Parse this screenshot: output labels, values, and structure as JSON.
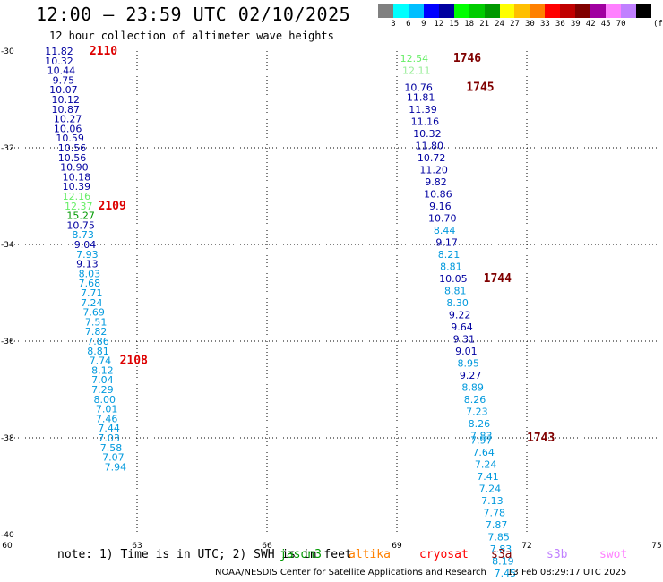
{
  "header": {
    "title": "12:00 — 23:59 UTC 02/10/2025",
    "subtitle": "12 hour collection of altimeter wave heights"
  },
  "legend": {
    "unit": "(ft)",
    "ticks": [
      "3",
      "6",
      "9",
      "12",
      "15",
      "18",
      "21",
      "24",
      "27",
      "30",
      "33",
      "36",
      "39",
      "42",
      "45",
      "70"
    ],
    "colors": [
      "#808080",
      "#00ffff",
      "#00bfff",
      "#0000ff",
      "#0000a0",
      "#00ff00",
      "#00cc00",
      "#009900",
      "#ffff00",
      "#ffbf00",
      "#ff8000",
      "#ff0000",
      "#c00000",
      "#800000",
      "#a000a0",
      "#ff80ff",
      "#c080ff",
      "#000000"
    ]
  },
  "note": {
    "text": "note: 1) Time is in UTC; 2) SWH is in feet",
    "satellites": [
      {
        "name": "jason3",
        "color": "#009900"
      },
      {
        "name": "altika",
        "color": "#ff8000"
      },
      {
        "name": "cryosat",
        "color": "#ff0000"
      },
      {
        "name": "s3a",
        "color": "#800000"
      },
      {
        "name": "s3b",
        "color": "#c080ff"
      },
      {
        "name": "swot",
        "color": "#ff80ff"
      }
    ]
  },
  "footer": {
    "org": "NOAA/NESDIS Center for Satellite Applications and Research",
    "timestamp": "13 Feb 08:29:17 UTC 2025"
  },
  "chart_data": {
    "type": "scatter",
    "xlim": [
      60,
      75
    ],
    "ylim": [
      -40,
      -30
    ],
    "x_ticks": [
      "60",
      "63",
      "66",
      "69",
      "72",
      "75"
    ],
    "y_ticks": [
      "-30",
      "-32",
      "-34",
      "-36",
      "-38",
      "-40"
    ],
    "grid": true,
    "tracks": [
      {
        "points": [
          {
            "x": 61.2,
            "y": -30.0,
            "v": "11.82",
            "c": "#0000a0"
          },
          {
            "x": 61.2,
            "y": -30.2,
            "v": "10.32",
            "c": "#0000a0"
          },
          {
            "x": 61.25,
            "y": -30.4,
            "v": "10.44",
            "c": "#0000a0"
          },
          {
            "x": 61.3,
            "y": -30.6,
            "v": "9.75",
            "c": "#0000a0"
          },
          {
            "x": 61.3,
            "y": -30.8,
            "v": "10.07",
            "c": "#0000a0"
          },
          {
            "x": 61.35,
            "y": -31.0,
            "v": "10.12",
            "c": "#0000a0"
          },
          {
            "x": 61.35,
            "y": -31.2,
            "v": "10.87",
            "c": "#0000a0"
          },
          {
            "x": 61.4,
            "y": -31.4,
            "v": "10.27",
            "c": "#0000a0"
          },
          {
            "x": 61.4,
            "y": -31.6,
            "v": "10.06",
            "c": "#0000a0"
          },
          {
            "x": 61.45,
            "y": -31.8,
            "v": "10.59",
            "c": "#0000a0"
          },
          {
            "x": 61.5,
            "y": -32.0,
            "v": "10.56",
            "c": "#0000a0"
          },
          {
            "x": 61.5,
            "y": -32.2,
            "v": "10.56",
            "c": "#0000a0"
          },
          {
            "x": 61.55,
            "y": -32.4,
            "v": "10.90",
            "c": "#0000a0"
          },
          {
            "x": 61.6,
            "y": -32.6,
            "v": "10.18",
            "c": "#0000a0"
          },
          {
            "x": 61.6,
            "y": -32.8,
            "v": "10.39",
            "c": "#0000a0"
          },
          {
            "x": 61.6,
            "y": -33.0,
            "v": "12.16",
            "c": "#66ee66"
          },
          {
            "x": 61.65,
            "y": -33.2,
            "v": "12.37",
            "c": "#66ee66"
          },
          {
            "x": 61.7,
            "y": -33.4,
            "v": "15.27",
            "c": "#009900"
          },
          {
            "x": 61.7,
            "y": -33.6,
            "v": "10.75",
            "c": "#0000a0"
          },
          {
            "x": 61.75,
            "y": -33.8,
            "v": "8.73",
            "c": "#0099dd"
          },
          {
            "x": 61.8,
            "y": -34.0,
            "v": "9.04",
            "c": "#0000a0"
          },
          {
            "x": 61.85,
            "y": -34.2,
            "v": "7.93",
            "c": "#0099dd"
          },
          {
            "x": 61.85,
            "y": -34.4,
            "v": "9.13",
            "c": "#0000a0"
          },
          {
            "x": 61.9,
            "y": -34.6,
            "v": "8.03",
            "c": "#0099dd"
          },
          {
            "x": 61.9,
            "y": -34.8,
            "v": "7.68",
            "c": "#0099dd"
          },
          {
            "x": 61.95,
            "y": -35.0,
            "v": "7.71",
            "c": "#0099dd"
          },
          {
            "x": 61.95,
            "y": -35.2,
            "v": "7.24",
            "c": "#0099dd"
          },
          {
            "x": 62.0,
            "y": -35.4,
            "v": "7.69",
            "c": "#0099dd"
          },
          {
            "x": 62.05,
            "y": -35.6,
            "v": "7.51",
            "c": "#0099dd"
          },
          {
            "x": 62.05,
            "y": -35.8,
            "v": "7.82",
            "c": "#0099dd"
          },
          {
            "x": 62.1,
            "y": -36.0,
            "v": "7.86",
            "c": "#0099dd"
          },
          {
            "x": 62.1,
            "y": -36.2,
            "v": "8.81",
            "c": "#0099dd"
          },
          {
            "x": 62.15,
            "y": -36.4,
            "v": "7.74",
            "c": "#0099dd"
          },
          {
            "x": 62.2,
            "y": -36.6,
            "v": "8.12",
            "c": "#0099dd"
          },
          {
            "x": 62.2,
            "y": -36.8,
            "v": "7.04",
            "c": "#0099dd"
          },
          {
            "x": 62.2,
            "y": -37.0,
            "v": "7.29",
            "c": "#0099dd"
          },
          {
            "x": 62.25,
            "y": -37.2,
            "v": "8.00",
            "c": "#0099dd"
          },
          {
            "x": 62.3,
            "y": -37.4,
            "v": "7.01",
            "c": "#0099dd"
          },
          {
            "x": 62.3,
            "y": -37.6,
            "v": "7.46",
            "c": "#0099dd"
          },
          {
            "x": 62.35,
            "y": -37.8,
            "v": "7.44",
            "c": "#0099dd"
          },
          {
            "x": 62.35,
            "y": -38.0,
            "v": "7.03",
            "c": "#0099dd"
          },
          {
            "x": 62.4,
            "y": -38.2,
            "v": "7.58",
            "c": "#0099dd"
          },
          {
            "x": 62.45,
            "y": -38.4,
            "v": "7.07",
            "c": "#0099dd"
          },
          {
            "x": 62.5,
            "y": -38.6,
            "v": "7.94",
            "c": "#0099dd"
          }
        ]
      },
      {
        "points": [
          {
            "x": 69.4,
            "y": -30.15,
            "v": "12.54",
            "c": "#66ee66"
          },
          {
            "x": 69.45,
            "y": -30.4,
            "v": "12.11",
            "c": "#99ee99"
          },
          {
            "x": 69.5,
            "y": -30.75,
            "v": "10.76",
            "c": "#0000a0"
          },
          {
            "x": 69.55,
            "y": -30.95,
            "v": "11.81",
            "c": "#0000a0"
          },
          {
            "x": 69.6,
            "y": -31.2,
            "v": "11.39",
            "c": "#0000a0"
          },
          {
            "x": 69.65,
            "y": -31.45,
            "v": "11.16",
            "c": "#0000a0"
          },
          {
            "x": 69.7,
            "y": -31.7,
            "v": "10.32",
            "c": "#0000a0"
          },
          {
            "x": 69.75,
            "y": -31.95,
            "v": "11.80",
            "c": "#0000a0"
          },
          {
            "x": 69.8,
            "y": -32.2,
            "v": "10.72",
            "c": "#0000a0"
          },
          {
            "x": 69.85,
            "y": -32.45,
            "v": "11.20",
            "c": "#0000a0"
          },
          {
            "x": 69.9,
            "y": -32.7,
            "v": "9.82",
            "c": "#0000a0"
          },
          {
            "x": 69.95,
            "y": -32.95,
            "v": "10.86",
            "c": "#0000a0"
          },
          {
            "x": 70.0,
            "y": -33.2,
            "v": "9.16",
            "c": "#0000a0"
          },
          {
            "x": 70.05,
            "y": -33.45,
            "v": "10.70",
            "c": "#0000a0"
          },
          {
            "x": 70.1,
            "y": -33.7,
            "v": "8.44",
            "c": "#0099dd"
          },
          {
            "x": 70.15,
            "y": -33.95,
            "v": "9.17",
            "c": "#0000a0"
          },
          {
            "x": 70.2,
            "y": -34.2,
            "v": "8.21",
            "c": "#0099dd"
          },
          {
            "x": 70.25,
            "y": -34.45,
            "v": "8.81",
            "c": "#0099dd"
          },
          {
            "x": 70.3,
            "y": -34.7,
            "v": "10.05",
            "c": "#0000a0"
          },
          {
            "x": 70.35,
            "y": -34.95,
            "v": "8.81",
            "c": "#0099dd"
          },
          {
            "x": 70.4,
            "y": -35.2,
            "v": "8.30",
            "c": "#0099dd"
          },
          {
            "x": 70.45,
            "y": -35.45,
            "v": "9.22",
            "c": "#0000a0"
          },
          {
            "x": 70.5,
            "y": -35.7,
            "v": "9.64",
            "c": "#0000a0"
          },
          {
            "x": 70.55,
            "y": -35.95,
            "v": "9.31",
            "c": "#0000a0"
          },
          {
            "x": 70.6,
            "y": -36.2,
            "v": "9.01",
            "c": "#0000a0"
          },
          {
            "x": 70.65,
            "y": -36.45,
            "v": "8.95",
            "c": "#0099dd"
          },
          {
            "x": 70.7,
            "y": -36.7,
            "v": "9.27",
            "c": "#0000a0"
          },
          {
            "x": 70.75,
            "y": -36.95,
            "v": "8.89",
            "c": "#0099dd"
          },
          {
            "x": 70.8,
            "y": -37.2,
            "v": "8.26",
            "c": "#0099dd"
          },
          {
            "x": 70.85,
            "y": -37.45,
            "v": "7.23",
            "c": "#0099dd"
          },
          {
            "x": 70.9,
            "y": -37.7,
            "v": "8.26",
            "c": "#0099dd"
          },
          {
            "x": 70.95,
            "y": -37.95,
            "v": "7.83",
            "c": "#0099dd"
          },
          {
            "x": 70.95,
            "y": -38.05,
            "v": "7.97",
            "c": "#0099dd"
          },
          {
            "x": 71.0,
            "y": -38.3,
            "v": "7.64",
            "c": "#0099dd"
          },
          {
            "x": 71.05,
            "y": -38.55,
            "v": "7.24",
            "c": "#0099dd"
          },
          {
            "x": 71.1,
            "y": -38.8,
            "v": "7.41",
            "c": "#0099dd"
          },
          {
            "x": 71.15,
            "y": -39.05,
            "v": "7.24",
            "c": "#0099dd"
          },
          {
            "x": 71.2,
            "y": -39.3,
            "v": "7.13",
            "c": "#0099dd"
          },
          {
            "x": 71.25,
            "y": -39.55,
            "v": "7.78",
            "c": "#0099dd"
          },
          {
            "x": 71.3,
            "y": -39.8,
            "v": "7.87",
            "c": "#0099dd"
          },
          {
            "x": 71.35,
            "y": -40.05,
            "v": "7.85",
            "c": "#0099dd"
          },
          {
            "x": 71.4,
            "y": -40.3,
            "v": "7.83",
            "c": "#0099dd"
          },
          {
            "x": 71.45,
            "y": -40.55,
            "v": "8.19",
            "c": "#0099dd"
          },
          {
            "x": 71.5,
            "y": -40.8,
            "v": "7.45",
            "c": "#0099dd"
          }
        ]
      }
    ],
    "time_labels": [
      {
        "x": 61.9,
        "y": -30.0,
        "text": "2110",
        "c": "#dd0000"
      },
      {
        "x": 62.1,
        "y": -33.2,
        "text": "2109",
        "c": "#dd0000"
      },
      {
        "x": 62.6,
        "y": -36.4,
        "text": "2108",
        "c": "#dd0000"
      },
      {
        "x": 70.3,
        "y": -30.15,
        "text": "1746",
        "c": "#800000"
      },
      {
        "x": 70.6,
        "y": -30.75,
        "text": "1745",
        "c": "#800000"
      },
      {
        "x": 71.0,
        "y": -34.7,
        "text": "1744",
        "c": "#800000"
      },
      {
        "x": 72.0,
        "y": -38.0,
        "text": "1743",
        "c": "#800000"
      }
    ]
  }
}
